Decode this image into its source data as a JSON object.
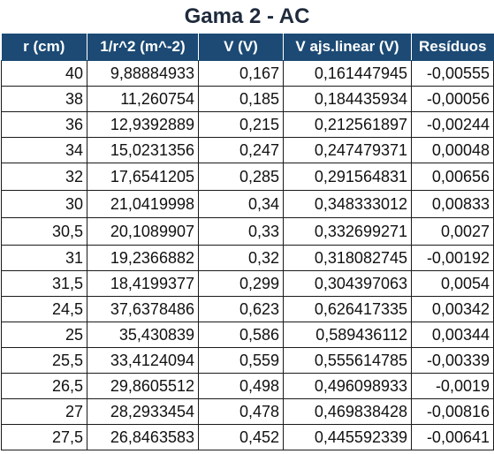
{
  "title": "Gama 2 - AC",
  "table": {
    "headers": [
      "r (cm)",
      "1/r^2  (m^-2)",
      "V  (V)",
      "V ajs.linear (V)",
      "Resíduos"
    ],
    "rows": [
      [
        "40",
        "9,88884933",
        "0,167",
        "0,161447945",
        "-0,00555"
      ],
      [
        "38",
        "11,260754",
        "0,185",
        "0,184435934",
        "-0,00056"
      ],
      [
        "36",
        "12,9392889",
        "0,215",
        "0,212561897",
        "-0,00244"
      ],
      [
        "34",
        "15,0231356",
        "0,247",
        "0,247479371",
        "0,00048"
      ],
      [
        "32",
        "17,6541205",
        "0,285",
        "0,291564831",
        "0,00656"
      ],
      [
        "30",
        "21,0419998",
        "0,34",
        "0,348333012",
        "0,00833"
      ],
      [
        "30,5",
        "20,1089907",
        "0,33",
        "0,332699271",
        "0,0027"
      ],
      [
        "31",
        "19,2366882",
        "0,32",
        "0,318082745",
        "-0,00192"
      ],
      [
        "31,5",
        "18,4199377",
        "0,299",
        "0,304397063",
        "0,0054"
      ],
      [
        "24,5",
        "37,6378486",
        "0,623",
        "0,626417335",
        "0,00342"
      ],
      [
        "25",
        "35,430839",
        "0,586",
        "0,589436112",
        "0,00344"
      ],
      [
        "25,5",
        "33,4124094",
        "0,559",
        "0,555614785",
        "-0,00339"
      ],
      [
        "26,5",
        "29,8605512",
        "0,498",
        "0,496098933",
        "-0,0019"
      ],
      [
        "27",
        "28,2933454",
        "0,478",
        "0,469838428",
        "-0,00816"
      ],
      [
        "27,5",
        "26,8463583",
        "0,452",
        "0,445592339",
        "-0,00641"
      ]
    ]
  },
  "colors": {
    "header_bg": "#1c4a74",
    "header_text": "#ffffff",
    "title_text": "#1f2a3c",
    "border": "#1a1a1a"
  }
}
